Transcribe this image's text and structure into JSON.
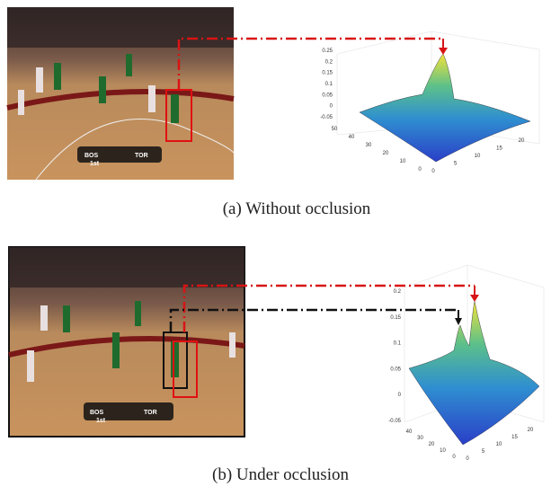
{
  "panels": [
    {
      "caption": "(a) Without occlusion",
      "scoreboard": {
        "home": "BOS",
        "away": "TOR",
        "period": "1st"
      },
      "plot": {
        "z_ticks": [
          0.25,
          0.2,
          0.15,
          0.1,
          0.05,
          0,
          -0.05
        ],
        "y_ticks": [
          50,
          40,
          30,
          20,
          10,
          0
        ],
        "x_ticks": [
          0,
          5,
          10,
          15,
          20
        ]
      }
    },
    {
      "caption": "(b) Under occlusion",
      "scoreboard": {
        "home": "BOS",
        "away": "TOR",
        "period": "1st"
      },
      "plot": {
        "z_ticks": [
          0.2,
          0.15,
          0.1,
          0.05,
          0,
          -0.05
        ],
        "y_ticks": [
          40,
          30,
          20,
          10,
          0
        ],
        "x_ticks": [
          0,
          5,
          10,
          15,
          20
        ]
      }
    }
  ]
}
